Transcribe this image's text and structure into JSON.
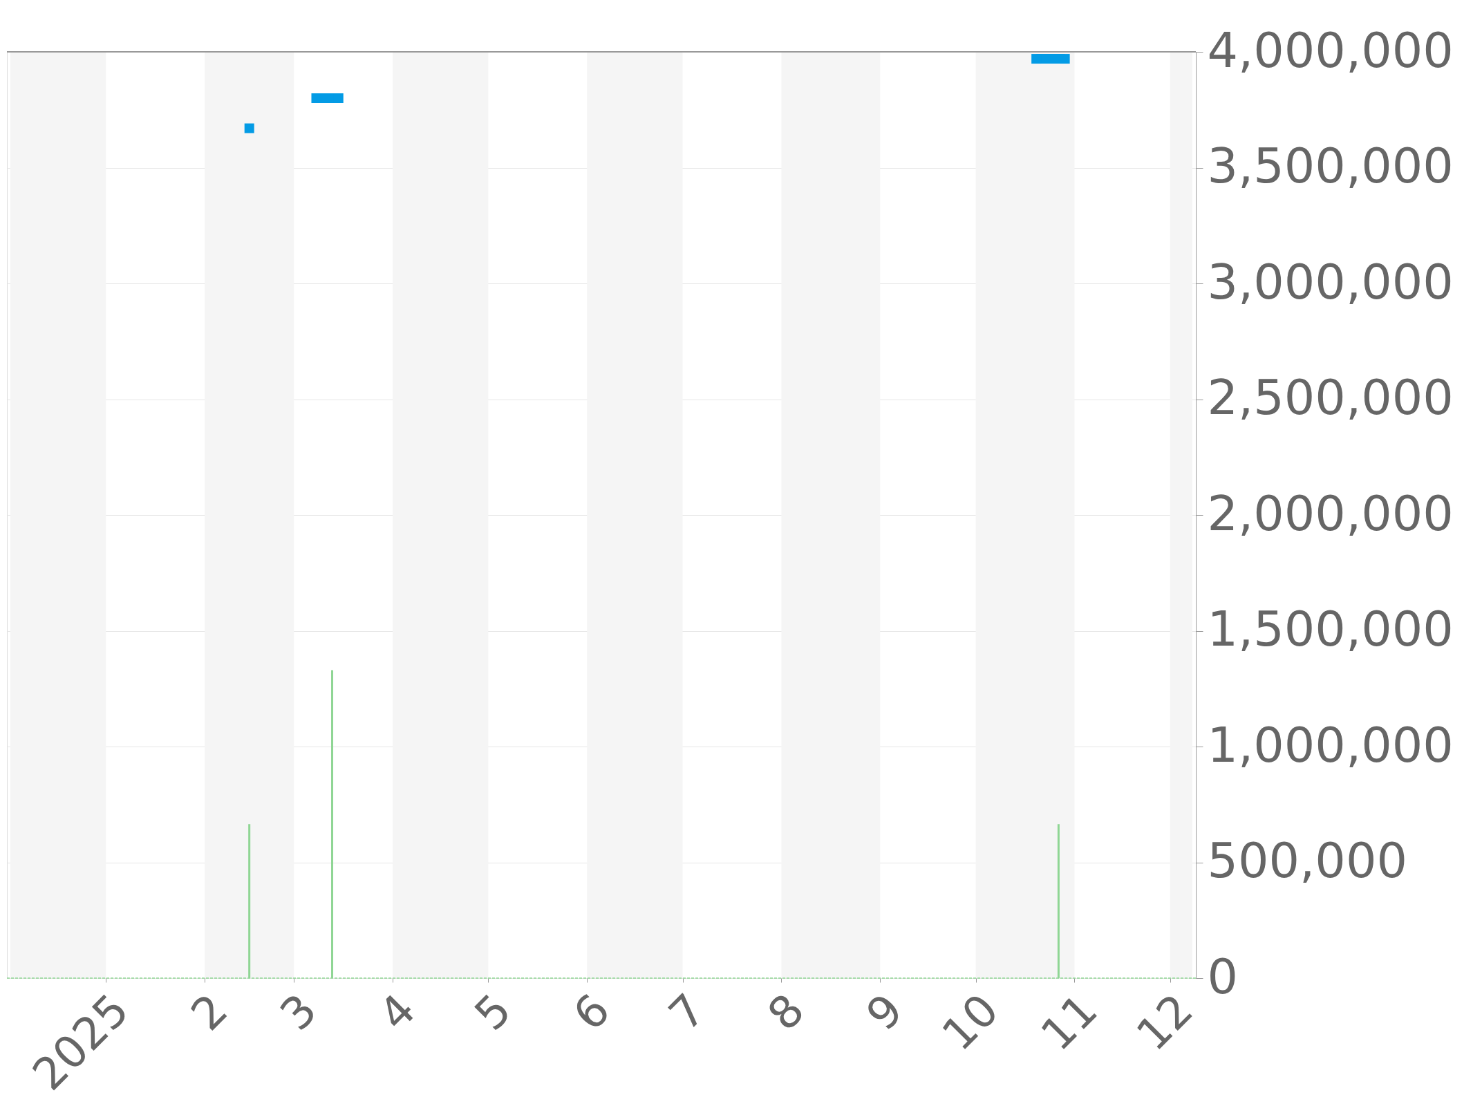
{
  "chart_data": {
    "type": "line",
    "series": [
      {
        "color": "#039be5",
        "x": [
          "2025-02-15",
          "2025-03-01",
          "2025-03-08",
          "2025-03-15",
          "2025-05-01",
          "2025-10-20",
          "2025-10-29"
        ],
        "values": [
          3670000,
          null,
          3800000,
          3800000,
          null,
          3970000,
          3970000
        ]
      },
      {
        "type": "bar",
        "color": "#8fd694",
        "x": [
          "2025-02-15",
          "2025-03-13",
          "2025-10-27"
        ],
        "values": [
          665000,
          1330000,
          665000
        ]
      }
    ],
    "marker": "square",
    "line_style": "solid",
    "xlim": [
      "2024-12-02",
      "2025-12-08"
    ],
    "xticks": [
      {
        "value": "2025-01-01",
        "label": "2025"
      },
      {
        "value": "2025-02-01",
        "label": "2"
      },
      {
        "value": "2025-03-01",
        "label": "3"
      },
      {
        "value": "2025-04-01",
        "label": "4"
      },
      {
        "value": "2025-05-01",
        "label": "5"
      },
      {
        "value": "2025-06-01",
        "label": "6"
      },
      {
        "value": "2025-07-01",
        "label": "7"
      },
      {
        "value": "2025-08-01",
        "label": "8"
      },
      {
        "value": "2025-09-01",
        "label": "9"
      },
      {
        "value": "2025-10-01",
        "label": "10"
      },
      {
        "value": "2025-11-01",
        "label": "11"
      },
      {
        "value": "2025-12-01",
        "label": "12"
      }
    ],
    "ylim": [
      0,
      4000000
    ],
    "yticks": [
      0,
      {
        "value": 500000,
        "label": "500,000"
      },
      {
        "value": 1000000,
        "label": "1,000,000"
      },
      {
        "value": 1500000,
        "label": "1,500,000"
      },
      {
        "value": 2000000,
        "label": "2,000,000"
      },
      {
        "value": 2500000,
        "label": "2,500,000"
      },
      {
        "value": 3000000,
        "label": "3,000,000"
      },
      {
        "value": 3500000,
        "label": "3,500,000"
      },
      {
        "value": 4000000,
        "label": "4,000,000"
      }
    ],
    "grid": "y",
    "bands": [
      {
        "axis": "x",
        "from": "2024-12-02",
        "to": "2025-01-01",
        "color": "#f5f5f5"
      },
      {
        "axis": "x",
        "from": "2025-02-01",
        "to": "2025-03-01",
        "color": "#f5f5f5"
      },
      {
        "axis": "x",
        "from": "2025-04-01",
        "to": "2025-05-01",
        "color": "#f5f5f5"
      },
      {
        "axis": "x",
        "from": "2025-06-01",
        "to": "2025-07-01",
        "color": "#f5f5f5"
      },
      {
        "axis": "x",
        "from": "2025-08-01",
        "to": "2025-09-01",
        "color": "#f5f5f5"
      },
      {
        "axis": "x",
        "from": "2025-10-01",
        "to": "2025-11-01",
        "color": "#f5f5f5"
      },
      {
        "axis": "x",
        "from": "2025-12-01",
        "to": "2025-12-08",
        "color": "#f5f5f5"
      }
    ]
  }
}
